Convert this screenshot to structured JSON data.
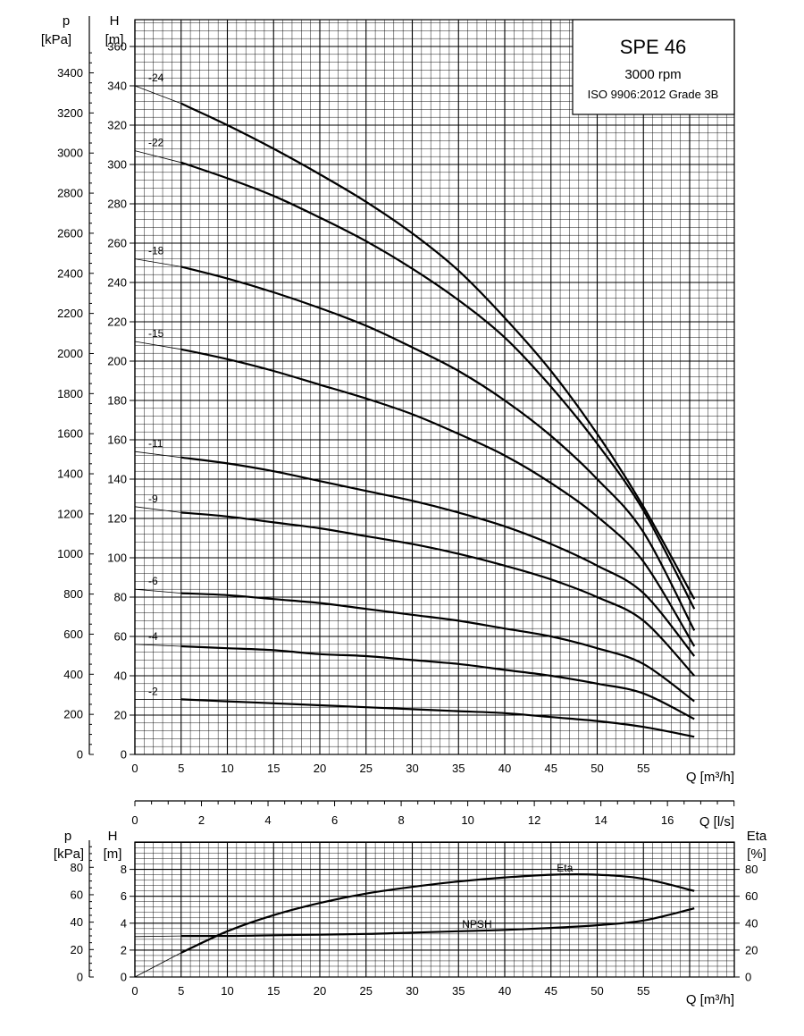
{
  "chart_data": [
    {
      "type": "line",
      "title": "SPE 46",
      "subtitle": "3000 rpm",
      "standard": "ISO 9906:2012 Grade 3B",
      "xlabel": "Q [m³/h]",
      "xlim": [
        0,
        65
      ],
      "x_ticks": [
        "0",
        "5",
        "10",
        "15",
        "20",
        "25",
        "30",
        "35",
        "40",
        "45",
        "50",
        "55"
      ],
      "ylabel": "H",
      "ylabel_unit": "[m]",
      "ylim": [
        0,
        370
      ],
      "y_ticks": [
        "0",
        "20",
        "40",
        "60",
        "80",
        "100",
        "120",
        "140",
        "160",
        "180",
        "200",
        "220",
        "240",
        "260",
        "280",
        "300",
        "320",
        "340",
        "360"
      ],
      "y2label": "p",
      "y2label_unit": "[kPa]",
      "y2_ticks": [
        "0",
        "200",
        "400",
        "600",
        "800",
        "1000",
        "1200",
        "1400",
        "1600",
        "1800",
        "2000",
        "2200",
        "2400",
        "2600",
        "2800",
        "3000",
        "3200",
        "3400"
      ],
      "grid": true,
      "series": [
        {
          "name": "-24",
          "x": [
            0,
            5,
            10,
            15,
            20,
            25,
            30,
            35,
            40,
            45,
            50,
            55,
            60.5
          ],
          "y": [
            340,
            331,
            320,
            308,
            295,
            281,
            265,
            246,
            222,
            195,
            163,
            126,
            79
          ]
        },
        {
          "name": "-22",
          "x": [
            0,
            5,
            10,
            15,
            20,
            25,
            30,
            35,
            40,
            45,
            50,
            55,
            60.5
          ],
          "y": [
            307,
            301,
            293,
            284,
            273,
            261,
            247,
            231,
            212,
            187,
            158,
            124,
            74
          ]
        },
        {
          "name": "-18",
          "x": [
            0,
            5,
            10,
            15,
            20,
            25,
            30,
            35,
            40,
            45,
            50,
            55,
            60.5
          ],
          "y": [
            252,
            248,
            242,
            235,
            227,
            218,
            207,
            195,
            180,
            162,
            140,
            113,
            63
          ]
        },
        {
          "name": "-15",
          "x": [
            0,
            5,
            10,
            15,
            20,
            25,
            30,
            35,
            40,
            45,
            50,
            55,
            60.5
          ],
          "y": [
            210,
            206,
            201,
            195,
            188,
            181,
            173,
            163,
            152,
            138,
            121,
            98,
            55
          ]
        },
        {
          "name": "-11",
          "x": [
            0,
            5,
            10,
            15,
            20,
            25,
            30,
            35,
            40,
            45,
            50,
            55,
            60.5
          ],
          "y": [
            154,
            151,
            148,
            144,
            139,
            134,
            129,
            123,
            116,
            107,
            96,
            82,
            50
          ]
        },
        {
          "name": "-9",
          "x": [
            0,
            5,
            10,
            15,
            20,
            25,
            30,
            35,
            40,
            45,
            50,
            55,
            60.5
          ],
          "y": [
            126,
            123,
            121,
            118,
            115,
            111,
            107,
            102,
            96,
            89,
            80,
            68,
            40
          ]
        },
        {
          "name": "-6",
          "x": [
            0,
            5,
            10,
            15,
            20,
            25,
            30,
            35,
            40,
            45,
            50,
            55,
            60.5
          ],
          "y": [
            84,
            82,
            81,
            79,
            77,
            74,
            71,
            68,
            64,
            60,
            54,
            46,
            27
          ]
        },
        {
          "name": "-4",
          "x": [
            0,
            5,
            10,
            15,
            20,
            25,
            30,
            35,
            40,
            45,
            50,
            55,
            60.5
          ],
          "y": [
            56,
            55,
            54,
            53,
            51,
            50,
            48,
            46,
            43,
            40,
            36,
            31,
            18
          ]
        },
        {
          "name": "-2",
          "x": [
            0,
            5,
            10,
            15,
            20,
            25,
            30,
            35,
            40,
            45,
            50,
            55,
            60.5
          ],
          "y": [
            28,
            28,
            27,
            26,
            25,
            24,
            23,
            22,
            21,
            19,
            17,
            14,
            9
          ]
        }
      ]
    },
    {
      "type": "line",
      "xlabel": "Q [l/s]",
      "xlim": [
        0,
        18.06
      ],
      "x_ticks": [
        "0",
        "2",
        "4",
        "6",
        "8",
        "10",
        "12",
        "14",
        "16"
      ]
    },
    {
      "type": "line",
      "xlabel": "Q [m³/h]",
      "xlim": [
        0,
        65
      ],
      "x_ticks": [
        "0",
        "5",
        "10",
        "15",
        "20",
        "25",
        "30",
        "35",
        "40",
        "45",
        "50",
        "55"
      ],
      "ylabel": "H",
      "ylabel_unit": "[m]",
      "ylim": [
        0,
        10
      ],
      "y_ticks": [
        "0",
        "2",
        "4",
        "6",
        "8"
      ],
      "y2label": "p",
      "y2label_unit": "[kPa]",
      "y2_ticks": [
        "0",
        "20",
        "40",
        "60",
        "80"
      ],
      "y3label": "Eta",
      "y3label_unit": "[%]",
      "y3_ticks": [
        "0",
        "20",
        "40",
        "60",
        "80"
      ],
      "grid": true,
      "series": [
        {
          "name": "Eta",
          "x": [
            0,
            5,
            10,
            15,
            20,
            25,
            30,
            35,
            40,
            45,
            50,
            55,
            60.5
          ],
          "y": [
            0,
            1.8,
            3.4,
            4.6,
            5.5,
            6.2,
            6.7,
            7.1,
            7.4,
            7.6,
            7.6,
            7.3,
            6.4
          ]
        },
        {
          "name": "NPSH",
          "x": [
            0,
            5,
            10,
            15,
            20,
            25,
            30,
            35,
            40,
            45,
            50,
            55,
            60.5
          ],
          "y": [
            3.0,
            3.05,
            3.05,
            3.1,
            3.15,
            3.2,
            3.3,
            3.4,
            3.5,
            3.65,
            3.85,
            4.2,
            5.1
          ]
        }
      ]
    }
  ]
}
